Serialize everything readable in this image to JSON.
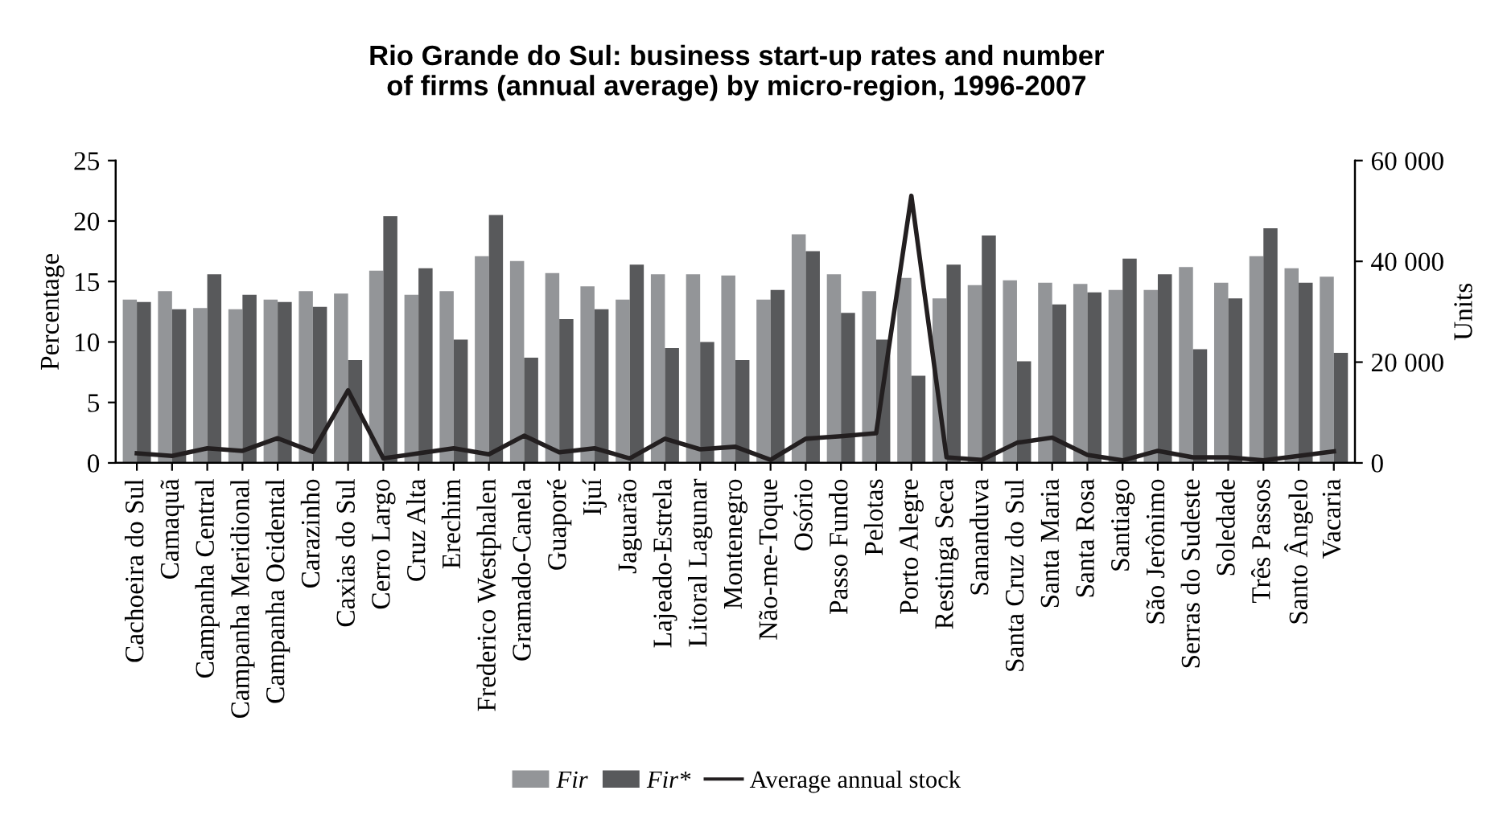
{
  "chart_data": {
    "type": "bar",
    "title": "Rio Grande do Sul: business start-up rates and number\nof firms (annual average) by micro-region, 1996-2007",
    "ylabel": "Percentage",
    "y2label": "Units",
    "categories": [
      "Cachoeira do Sul",
      "Camaquã",
      "Campanha Central",
      "Campanha Meridional",
      "Campanha Ocidental",
      "Carazinho",
      "Caxias do Sul",
      "Cerro Largo",
      "Cruz Alta",
      "Erechim",
      "Frederico Westphalen",
      "Gramado-Canela",
      "Guaporé",
      "Ijuí",
      "Jaguarão",
      "Lajeado-Estrela",
      "Litoral Lagunar",
      "Montenegro",
      "Não-me-Toque",
      "Osório",
      "Passo Fundo",
      "Pelotas",
      "Porto Alegre",
      "Restinga Seca",
      "Sananduva",
      "Santa Cruz do Sul",
      "Santa Maria",
      "Santa Rosa",
      "Santiago",
      "São Jerônimo",
      "Serras do Sudeste",
      "Soledade",
      "Três Passos",
      "Santo Ângelo",
      "Vacaria"
    ],
    "series": [
      {
        "name": "Fir",
        "color": "#939598",
        "values": [
          13.5,
          14.2,
          12.8,
          12.7,
          13.5,
          14.2,
          14.0,
          15.9,
          13.9,
          14.2,
          17.1,
          16.7,
          15.7,
          14.6,
          13.5,
          15.6,
          15.6,
          15.5,
          13.5,
          18.9,
          15.6,
          14.2,
          15.3,
          13.6,
          14.7,
          15.1,
          14.9,
          14.8,
          14.3,
          14.3,
          16.2,
          14.9,
          17.1,
          16.1,
          15.4
        ]
      },
      {
        "name": "Fir*",
        "color": "#58595b",
        "values": [
          13.3,
          12.7,
          15.6,
          13.9,
          13.3,
          12.9,
          8.5,
          20.4,
          16.1,
          10.2,
          20.5,
          8.7,
          11.9,
          12.7,
          16.4,
          9.5,
          10.0,
          8.5,
          14.3,
          17.5,
          12.4,
          10.2,
          7.2,
          16.4,
          18.8,
          8.4,
          13.1,
          14.1,
          16.9,
          15.6,
          9.4,
          13.6,
          19.4,
          14.9,
          9.1
        ]
      },
      {
        "name": "Average annual stock",
        "type": "line",
        "axis": "y2",
        "color": "#231f20",
        "values": [
          1900,
          1400,
          2900,
          2400,
          4900,
          2200,
          14400,
          900,
          1900,
          2900,
          1700,
          5400,
          2100,
          2900,
          900,
          4800,
          2700,
          3200,
          600,
          4800,
          5300,
          5900,
          53000,
          1100,
          600,
          4000,
          5000,
          1600,
          500,
          2400,
          1100,
          1100,
          500,
          1400,
          2300
        ]
      }
    ],
    "ylim": [
      0,
      25
    ],
    "yticks": [
      0,
      5,
      10,
      15,
      20,
      25
    ],
    "y2lim": [
      0,
      60000
    ],
    "y2ticks": [
      0,
      {
        "value": 20000,
        "label": "20 000"
      },
      {
        "value": 40000,
        "label": "40 000"
      },
      {
        "value": 60000,
        "label": "60 000"
      }
    ],
    "grid": false,
    "legend": "bottom",
    "marker": "none",
    "line_style": "solid"
  }
}
